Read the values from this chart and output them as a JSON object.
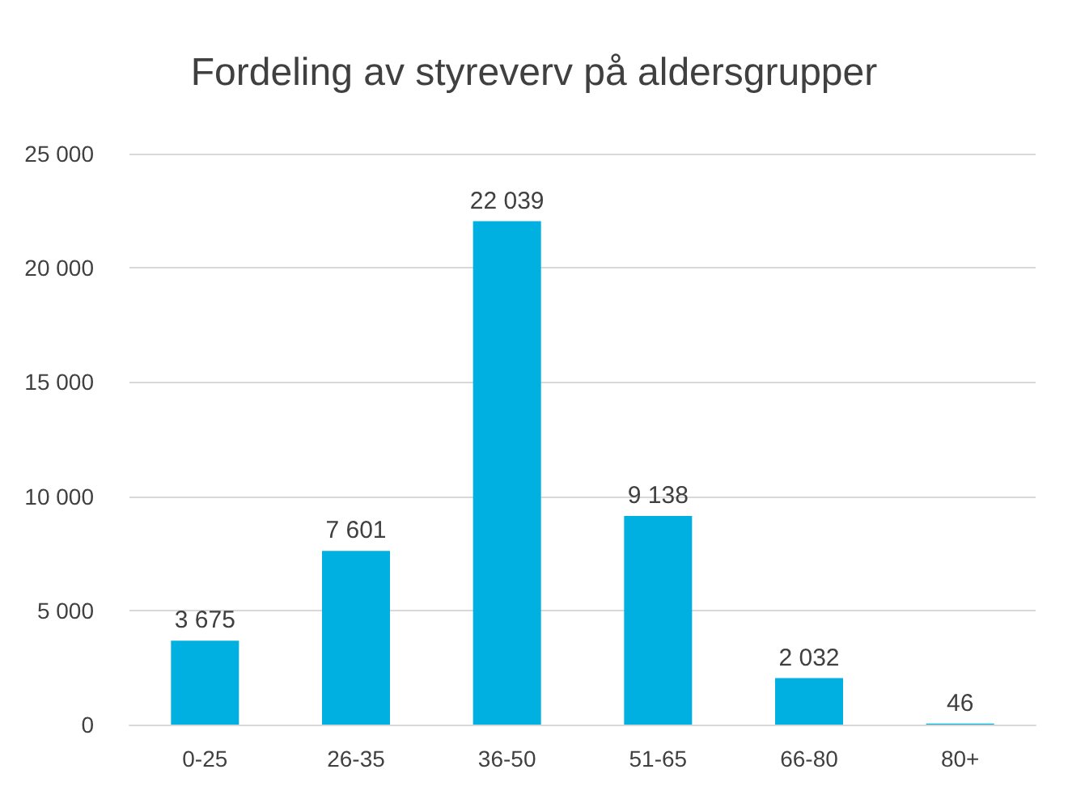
{
  "chart_data": {
    "type": "bar",
    "title": "Fordeling av styreverv på aldersgrupper",
    "categories": [
      "0-25",
      "26-35",
      "36-50",
      "51-65",
      "66-80",
      "80+"
    ],
    "values": [
      3675,
      7601,
      22039,
      9138,
      2032,
      46
    ],
    "value_labels": [
      "3 675",
      "7 601",
      "22 039",
      "9 138",
      "2 032",
      "46"
    ],
    "color": "#00b0e0",
    "ylim": [
      0,
      25000
    ],
    "yticks": [
      {
        "value": 0,
        "label": "0"
      },
      {
        "value": 5000,
        "label": "5 000"
      },
      {
        "value": 10000,
        "label": "10 000"
      },
      {
        "value": 15000,
        "label": "15 000"
      },
      {
        "value": 20000,
        "label": "20 000"
      },
      {
        "value": 25000,
        "label": "25 000"
      }
    ],
    "grid": "y"
  }
}
